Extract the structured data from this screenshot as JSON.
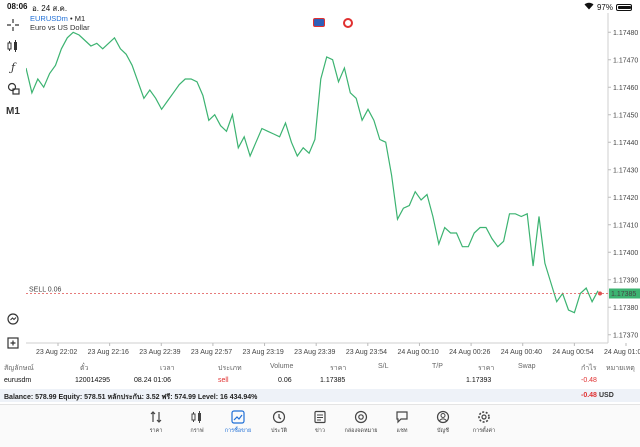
{
  "status": {
    "time": "08:06",
    "date": "อ. 24 ส.ค.",
    "battery": "97%",
    "battery_level": 0.97
  },
  "symbol": {
    "name": "EURUSDm",
    "separator": "•",
    "timeframe": "M1",
    "description": "Euro vs US Dollar"
  },
  "toolbar": {
    "items": [
      "crosshair-icon",
      "indicators-icon",
      "function-icon",
      "objects-icon"
    ],
    "timeframe": "M1"
  },
  "chart_data": {
    "type": "line",
    "line_color": "#3cb371",
    "ylim": [
      1.17367,
      1.17487
    ],
    "y_ticks": [
      "1.17370",
      "1.17380",
      "1.17390",
      "1.17400",
      "1.17410",
      "1.17420",
      "1.17430",
      "1.17440",
      "1.17450",
      "1.17460",
      "1.17470",
      "1.17480"
    ],
    "x_ticks": [
      "23 Aug 22:02",
      "23 Aug 22:16",
      "23 Aug 22:39",
      "23 Aug 22:57",
      "23 Aug 23:19",
      "23 Aug 23:39",
      "23 Aug 23:54",
      "24 Aug 00:10",
      "24 Aug 00:26",
      "24 Aug 00:40",
      "24 Aug 00:54",
      "24 Aug 01:0"
    ],
    "values": [
      1.17467,
      1.17458,
      1.17463,
      1.1746,
      1.17465,
      1.17468,
      1.17474,
      1.17478,
      1.1748,
      1.17479,
      1.17477,
      1.17475,
      1.17476,
      1.17474,
      1.17476,
      1.17478,
      1.17474,
      1.17472,
      1.17468,
      1.17462,
      1.17456,
      1.17459,
      1.17456,
      1.17452,
      1.17455,
      1.17458,
      1.17461,
      1.17463,
      1.17463,
      1.17462,
      1.17457,
      1.17448,
      1.1745,
      1.17446,
      1.17444,
      1.1745,
      1.17438,
      1.17442,
      1.17435,
      1.1744,
      1.17445,
      1.17444,
      1.17443,
      1.17442,
      1.17447,
      1.1744,
      1.17435,
      1.17438,
      1.17436,
      1.17441,
      1.17463,
      1.17471,
      1.1747,
      1.17462,
      1.17467,
      1.17458,
      1.17456,
      1.17448,
      1.17452,
      1.17448,
      1.17441,
      1.1744,
      1.17428,
      1.17412,
      1.17416,
      1.17417,
      1.17422,
      1.17419,
      1.17421,
      1.17413,
      1.17403,
      1.17409,
      1.17407,
      1.17407,
      1.17402,
      1.17402,
      1.17407,
      1.17409,
      1.17409,
      1.17405,
      1.17402,
      1.17404,
      1.17414,
      1.17414,
      1.17413,
      1.17414,
      1.17395,
      1.17413,
      1.17396,
      1.17389,
      1.17382,
      1.17385,
      1.17379,
      1.17378,
      1.17385,
      1.17387,
      1.17382,
      1.17386
    ],
    "sell_line": {
      "label": "SELL 0.06",
      "price": 1.17385,
      "price_label": "1.17385",
      "color": "#e05050"
    }
  },
  "trades": {
    "headers": [
      "สัญลักษณ์",
      "ตั๋ว",
      "เวลา",
      "ประเภท",
      "Volume",
      "ราคา",
      "S/L",
      "T/P",
      "ราคา",
      "Swap",
      "กำไร",
      "หมายเหตุ"
    ],
    "row": {
      "symbol": "eurusdm",
      "ticket": "120014295",
      "time": "08.24 01:06",
      "type": "sell",
      "volume": "0.06",
      "price": "1.17385",
      "current_price": "1.17393",
      "profit": "-0.48"
    }
  },
  "balance": {
    "text": "Balance: 578.99 Equity: 578.51 หลักประกัน: 3.52 ฟรี: 574.99 Level: 16 434.94%",
    "profit": "-0.48",
    "currency": "USD"
  },
  "tabs": [
    {
      "label": "ราคา",
      "icon": "quotes-icon"
    },
    {
      "label": "กราฟ",
      "icon": "chart-icon"
    },
    {
      "label": "การซื้อขาย",
      "icon": "trade-icon",
      "active": true
    },
    {
      "label": "ประวัติ",
      "icon": "history-icon"
    },
    {
      "label": "ข่าว",
      "icon": "news-icon"
    },
    {
      "label": "กล่องจดหมาย",
      "icon": "mailbox-icon"
    },
    {
      "label": "แชท",
      "icon": "chat-icon"
    },
    {
      "label": "บัญชี",
      "icon": "account-icon"
    },
    {
      "label": "การตั้งค่า",
      "icon": "settings-icon"
    }
  ]
}
